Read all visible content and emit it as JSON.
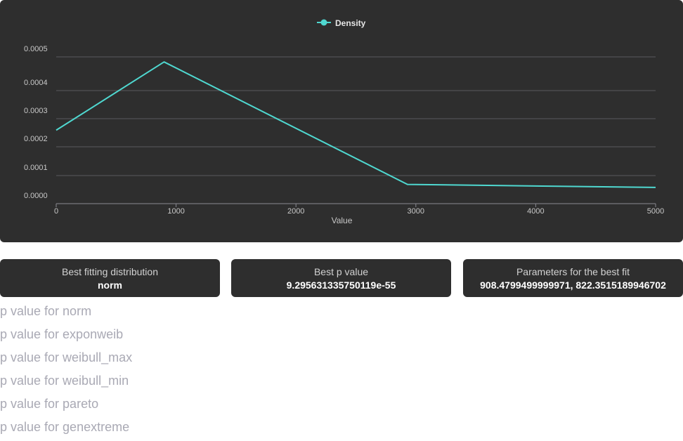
{
  "chart_data": {
    "type": "line",
    "title": "",
    "xlabel": "Value",
    "ylabel": "",
    "xlim": [
      0,
      5000
    ],
    "ylim": [
      0,
      0.0005
    ],
    "x_ticks": [
      "0",
      "1000",
      "2000",
      "3000",
      "4000",
      "5000"
    ],
    "y_ticks": [
      "0.0000",
      "0.0001",
      "0.0002",
      "0.0003",
      "0.0004",
      "0.0005"
    ],
    "grid": true,
    "legend_position": "top-center",
    "series": [
      {
        "name": "Density",
        "color": "#4fd8d0",
        "x": [
          0,
          900,
          2930,
          5000
        ],
        "y": [
          0.000259,
          0.000485,
          6.85e-05,
          5.78e-05
        ]
      }
    ]
  },
  "stats": {
    "best_distribution": {
      "label": "Best fitting distribution",
      "value": "norm"
    },
    "best_p_value": {
      "label": "Best p value",
      "value": "9.295631335750119e-55"
    },
    "best_params": {
      "label": "Parameters for the best fit",
      "value": "908.4799499999971, 822.3515189946702"
    }
  },
  "p_value_list": [
    "p value for norm",
    "p value for exponweib",
    "p value for weibull_max",
    "p value for weibull_min",
    "p value for pareto",
    "p value for genextreme"
  ],
  "colors": {
    "card_background": "#2e2e2e",
    "line": "#4fd8d0",
    "gridline": "#5a5a5f",
    "muted_text": "#a9a9b4"
  }
}
